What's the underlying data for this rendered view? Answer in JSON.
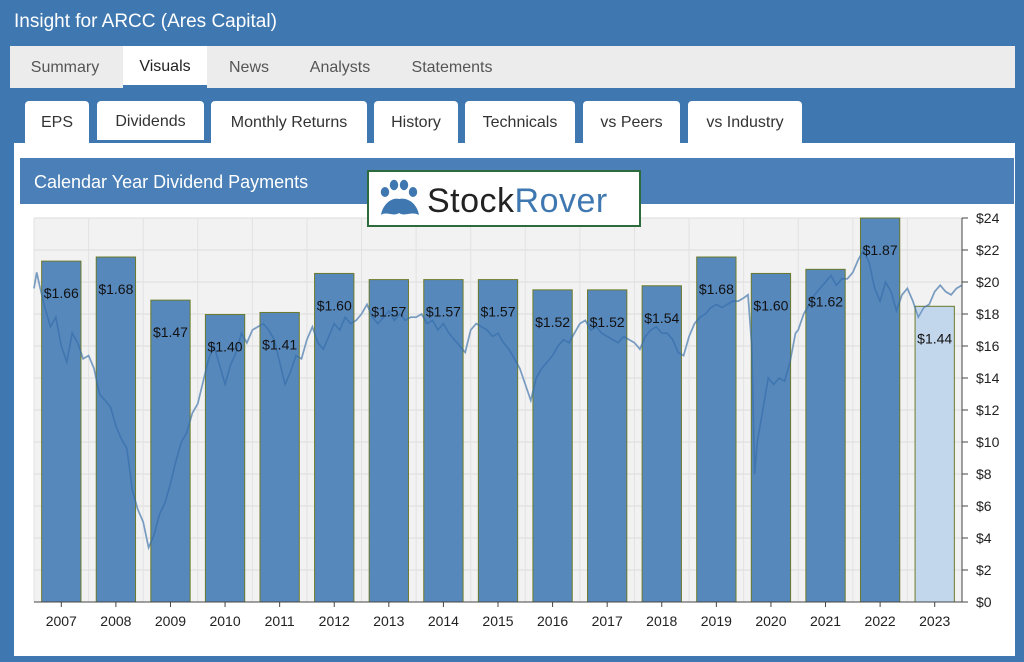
{
  "window": {
    "title": "Insight for ARCC (Ares Capital)"
  },
  "main_tabs": [
    {
      "label": "Summary"
    },
    {
      "label": "Visuals"
    },
    {
      "label": "News"
    },
    {
      "label": "Analysts"
    },
    {
      "label": "Statements"
    }
  ],
  "sub_tabs": [
    {
      "label": "EPS"
    },
    {
      "label": "Dividends"
    },
    {
      "label": "Monthly Returns"
    },
    {
      "label": "History"
    },
    {
      "label": "Technicals"
    },
    {
      "label": "vs Peers"
    },
    {
      "label": "vs Industry"
    }
  ],
  "chart_header": {
    "title": "Calendar Year Dividend Payments"
  },
  "logo": {
    "part1": "Stock",
    "part2": "Rover"
  },
  "colors": {
    "accent": "#3f78b0",
    "bar": "#4a7fb7",
    "bar_current": "#c3d7ec",
    "price_line": "#cfd7df"
  },
  "chart_data": {
    "type": "bar",
    "title": "Calendar Year Dividend Payments",
    "categories": [
      "2007",
      "2008",
      "2009",
      "2010",
      "2011",
      "2012",
      "2013",
      "2014",
      "2015",
      "2016",
      "2017",
      "2018",
      "2019",
      "2020",
      "2021",
      "2022",
      "2023"
    ],
    "values": [
      1.66,
      1.68,
      1.47,
      1.4,
      1.41,
      1.6,
      1.57,
      1.57,
      1.57,
      1.52,
      1.52,
      1.54,
      1.68,
      1.6,
      1.62,
      1.87,
      1.44
    ],
    "value_labels": [
      "$1.66",
      "$1.68",
      "$1.47",
      "$1.40",
      "$1.41",
      "$1.60",
      "$1.57",
      "$1.57",
      "$1.57",
      "$1.52",
      "$1.52",
      "$1.54",
      "$1.68",
      "$1.60",
      "$1.62",
      "$1.87",
      "$1.44"
    ],
    "highlight_last": true,
    "y_right_ticks": [
      "$0",
      "$2",
      "$4",
      "$6",
      "$8",
      "$10",
      "$12",
      "$14",
      "$16",
      "$18",
      "$20",
      "$22",
      "$24"
    ],
    "price_ylim": [
      0,
      24
    ],
    "grid": true,
    "price_series": [
      [
        2007.0,
        19.6
      ],
      [
        2007.05,
        20.6
      ],
      [
        2007.1,
        19.8
      ],
      [
        2007.2,
        18.4
      ],
      [
        2007.3,
        17.2
      ],
      [
        2007.4,
        17.8
      ],
      [
        2007.5,
        16.0
      ],
      [
        2007.6,
        15.0
      ],
      [
        2007.7,
        16.8
      ],
      [
        2007.8,
        16.2
      ],
      [
        2007.9,
        15.2
      ],
      [
        2008.0,
        15.4
      ],
      [
        2008.1,
        14.6
      ],
      [
        2008.2,
        13.0
      ],
      [
        2008.3,
        12.6
      ],
      [
        2008.4,
        12.2
      ],
      [
        2008.5,
        11.0
      ],
      [
        2008.6,
        10.2
      ],
      [
        2008.7,
        9.6
      ],
      [
        2008.8,
        7.0
      ],
      [
        2008.9,
        5.8
      ],
      [
        2009.0,
        5.0
      ],
      [
        2009.1,
        3.4
      ],
      [
        2009.2,
        4.2
      ],
      [
        2009.3,
        5.5
      ],
      [
        2009.4,
        6.2
      ],
      [
        2009.5,
        7.4
      ],
      [
        2009.6,
        8.8
      ],
      [
        2009.7,
        10.0
      ],
      [
        2009.8,
        10.6
      ],
      [
        2009.9,
        11.8
      ],
      [
        2010.0,
        12.4
      ],
      [
        2010.1,
        13.8
      ],
      [
        2010.2,
        15.2
      ],
      [
        2010.3,
        16.0
      ],
      [
        2010.4,
        14.8
      ],
      [
        2010.5,
        13.6
      ],
      [
        2010.6,
        14.8
      ],
      [
        2010.7,
        15.6
      ],
      [
        2010.8,
        16.8
      ],
      [
        2010.9,
        16.2
      ],
      [
        2011.0,
        17.0
      ],
      [
        2011.1,
        17.2
      ],
      [
        2011.2,
        17.4
      ],
      [
        2011.3,
        17.0
      ],
      [
        2011.4,
        16.4
      ],
      [
        2011.5,
        15.0
      ],
      [
        2011.6,
        13.6
      ],
      [
        2011.7,
        14.4
      ],
      [
        2011.8,
        15.4
      ],
      [
        2011.9,
        15.2
      ],
      [
        2012.0,
        16.4
      ],
      [
        2012.1,
        17.2
      ],
      [
        2012.2,
        16.2
      ],
      [
        2012.3,
        15.8
      ],
      [
        2012.4,
        16.6
      ],
      [
        2012.5,
        17.4
      ],
      [
        2012.6,
        17.0
      ],
      [
        2012.7,
        17.8
      ],
      [
        2012.8,
        17.4
      ],
      [
        2012.9,
        17.6
      ],
      [
        2013.0,
        18.0
      ],
      [
        2013.1,
        18.6
      ],
      [
        2013.2,
        17.8
      ],
      [
        2013.3,
        17.4
      ],
      [
        2013.4,
        17.8
      ],
      [
        2013.5,
        18.2
      ],
      [
        2013.6,
        17.6
      ],
      [
        2013.7,
        18.0
      ],
      [
        2013.8,
        17.6
      ],
      [
        2013.9,
        17.8
      ],
      [
        2014.0,
        17.8
      ],
      [
        2014.1,
        18.0
      ],
      [
        2014.2,
        17.4
      ],
      [
        2014.3,
        17.6
      ],
      [
        2014.4,
        17.0
      ],
      [
        2014.5,
        17.4
      ],
      [
        2014.6,
        16.8
      ],
      [
        2014.7,
        16.4
      ],
      [
        2014.8,
        16.0
      ],
      [
        2014.9,
        15.6
      ],
      [
        2015.0,
        17.0
      ],
      [
        2015.1,
        17.4
      ],
      [
        2015.2,
        17.2
      ],
      [
        2015.3,
        17.0
      ],
      [
        2015.4,
        16.6
      ],
      [
        2015.5,
        16.8
      ],
      [
        2015.6,
        16.2
      ],
      [
        2015.7,
        15.8
      ],
      [
        2015.8,
        15.2
      ],
      [
        2015.9,
        14.6
      ],
      [
        2016.0,
        13.6
      ],
      [
        2016.1,
        12.6
      ],
      [
        2016.2,
        14.0
      ],
      [
        2016.3,
        14.6
      ],
      [
        2016.4,
        15.0
      ],
      [
        2016.5,
        15.4
      ],
      [
        2016.6,
        16.0
      ],
      [
        2016.7,
        16.4
      ],
      [
        2016.8,
        16.2
      ],
      [
        2016.9,
        16.8
      ],
      [
        2017.0,
        17.4
      ],
      [
        2017.1,
        17.6
      ],
      [
        2017.2,
        17.0
      ],
      [
        2017.3,
        17.2
      ],
      [
        2017.4,
        16.8
      ],
      [
        2017.5,
        16.6
      ],
      [
        2017.6,
        16.4
      ],
      [
        2017.7,
        16.2
      ],
      [
        2017.8,
        16.6
      ],
      [
        2017.9,
        16.4
      ],
      [
        2018.0,
        16.2
      ],
      [
        2018.1,
        15.8
      ],
      [
        2018.2,
        16.6
      ],
      [
        2018.3,
        17.0
      ],
      [
        2018.4,
        17.2
      ],
      [
        2018.5,
        16.8
      ],
      [
        2018.6,
        16.8
      ],
      [
        2018.7,
        16.4
      ],
      [
        2018.8,
        15.6
      ],
      [
        2018.9,
        15.4
      ],
      [
        2019.0,
        16.6
      ],
      [
        2019.1,
        17.4
      ],
      [
        2019.2,
        17.8
      ],
      [
        2019.3,
        18.0
      ],
      [
        2019.4,
        18.4
      ],
      [
        2019.5,
        18.6
      ],
      [
        2019.6,
        18.4
      ],
      [
        2019.7,
        18.6
      ],
      [
        2019.8,
        18.8
      ],
      [
        2019.9,
        18.8
      ],
      [
        2020.0,
        19.0
      ],
      [
        2020.08,
        19.2
      ],
      [
        2020.15,
        16.0
      ],
      [
        2020.2,
        8.0
      ],
      [
        2020.25,
        10.0
      ],
      [
        2020.35,
        12.0
      ],
      [
        2020.45,
        14.0
      ],
      [
        2020.55,
        13.6
      ],
      [
        2020.65,
        14.0
      ],
      [
        2020.75,
        13.8
      ],
      [
        2020.85,
        15.0
      ],
      [
        2020.95,
        16.8
      ],
      [
        2021.0,
        17.0
      ],
      [
        2021.1,
        18.0
      ],
      [
        2021.2,
        18.6
      ],
      [
        2021.3,
        19.2
      ],
      [
        2021.4,
        19.6
      ],
      [
        2021.5,
        20.0
      ],
      [
        2021.6,
        20.4
      ],
      [
        2021.7,
        19.8
      ],
      [
        2021.8,
        20.2
      ],
      [
        2021.9,
        20.2
      ],
      [
        2022.0,
        20.6
      ],
      [
        2022.1,
        21.4
      ],
      [
        2022.2,
        22.0
      ],
      [
        2022.3,
        21.2
      ],
      [
        2022.4,
        19.6
      ],
      [
        2022.5,
        18.8
      ],
      [
        2022.6,
        20.0
      ],
      [
        2022.7,
        19.4
      ],
      [
        2022.8,
        18.2
      ],
      [
        2022.9,
        19.2
      ],
      [
        2023.0,
        19.6
      ],
      [
        2023.1,
        18.8
      ],
      [
        2023.2,
        17.8
      ],
      [
        2023.3,
        18.4
      ],
      [
        2023.4,
        18.6
      ],
      [
        2023.5,
        19.4
      ],
      [
        2023.6,
        19.8
      ],
      [
        2023.7,
        19.4
      ],
      [
        2023.8,
        19.2
      ],
      [
        2023.9,
        19.6
      ],
      [
        2024.0,
        19.8
      ]
    ]
  }
}
